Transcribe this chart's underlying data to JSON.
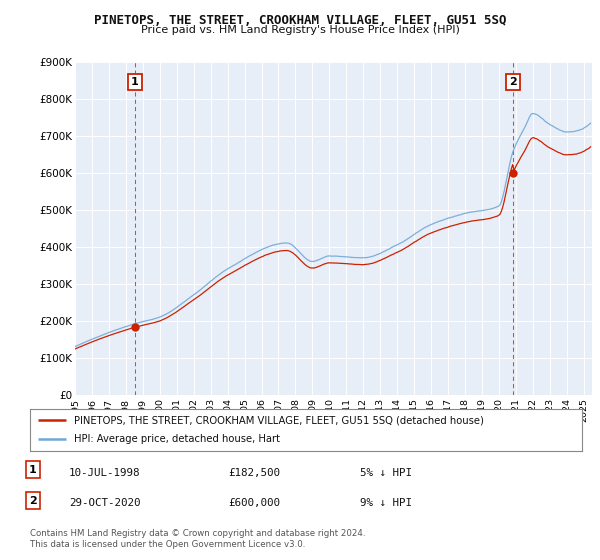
{
  "title": "PINETOPS, THE STREET, CROOKHAM VILLAGE, FLEET, GU51 5SQ",
  "subtitle": "Price paid vs. HM Land Registry's House Price Index (HPI)",
  "ylim": [
    0,
    900000
  ],
  "xlim_start": 1995.0,
  "xlim_end": 2025.5,
  "sale1_date": 1998.53,
  "sale1_price": 182500,
  "sale2_date": 2020.83,
  "sale2_price": 600000,
  "hpi_color": "#6fa8d8",
  "price_color": "#cc2200",
  "dashed_color": "#dd6666",
  "legend_label_price": "PINETOPS, THE STREET, CROOKHAM VILLAGE, FLEET, GU51 5SQ (detached house)",
  "legend_label_hpi": "HPI: Average price, detached house, Hart",
  "note1_label": "1",
  "note1_date": "10-JUL-1998",
  "note1_price": "£182,500",
  "note1_rel": "5% ↓ HPI",
  "note2_label": "2",
  "note2_date": "29-OCT-2020",
  "note2_price": "£600,000",
  "note2_rel": "9% ↓ HPI",
  "footer": "Contains HM Land Registry data © Crown copyright and database right 2024.\nThis data is licensed under the Open Government Licence v3.0.",
  "background_color": "#ffffff",
  "plot_bg_color": "#e8eef8"
}
